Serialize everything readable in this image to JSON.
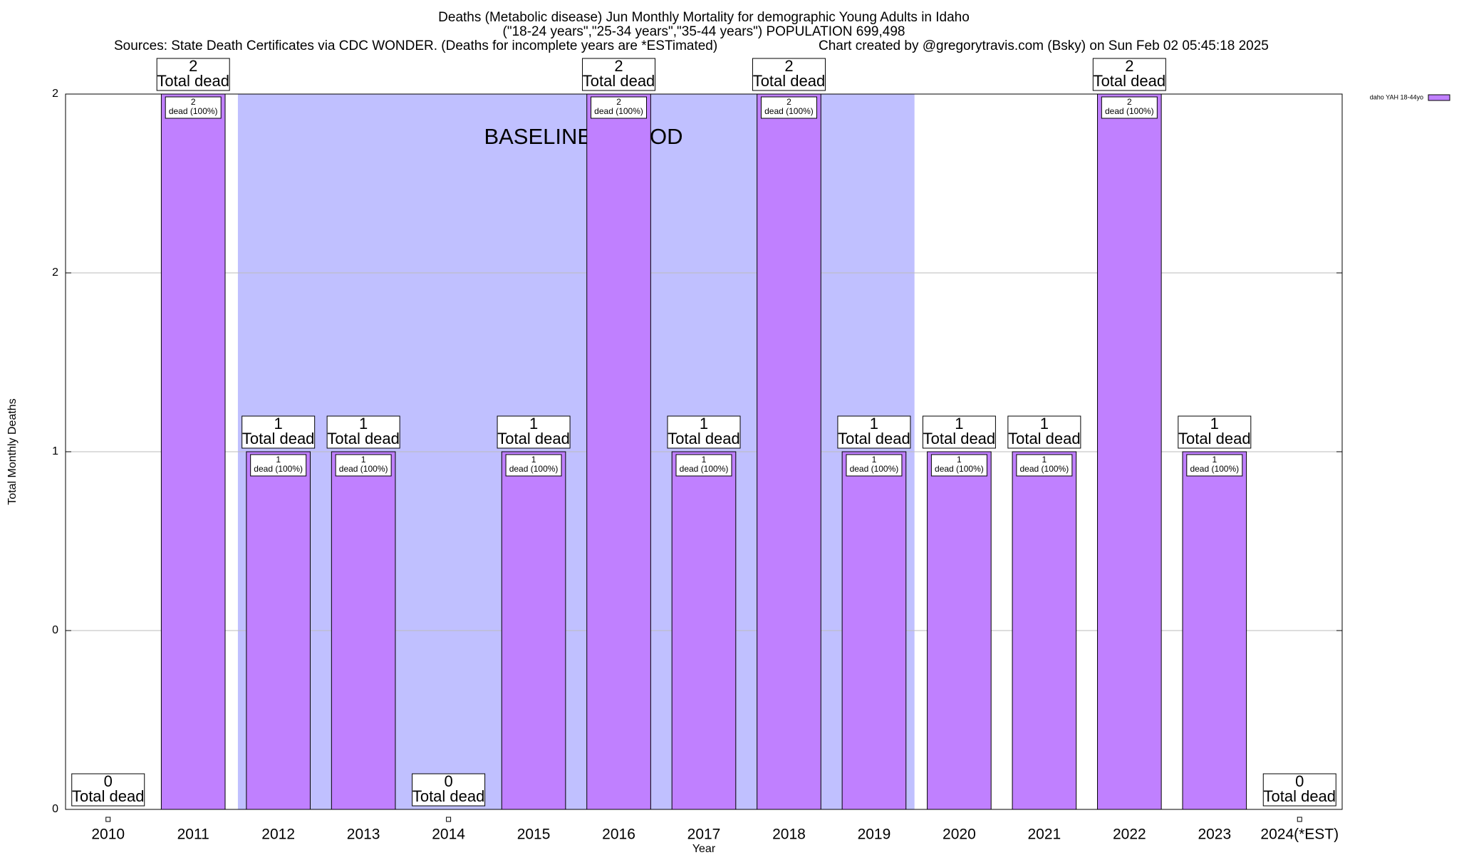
{
  "chart_data": {
    "type": "bar",
    "title": "Deaths (Metabolic disease) Jun Monthly Mortality for demographic Young Adults in Idaho",
    "subtitle": "(\"18-24 years\",\"25-34 years\",\"35-44 years\") POPULATION 699,498",
    "sources": "Sources: State Death Certificates via CDC WONDER. (Deaths for incomplete years are *ESTimated)",
    "credit": "Chart created by @gregorytravis.com (Bsky) on Sun Feb 02 05:45:18 2025",
    "x_label": "Year",
    "y_label": "Total Monthly Deaths",
    "categories": [
      "2010",
      "2011",
      "2012",
      "2013",
      "2014",
      "2015",
      "2016",
      "2017",
      "2018",
      "2019",
      "2020",
      "2021",
      "2022",
      "2023",
      "2024(*EST)"
    ],
    "series": [
      {
        "name": "daho YAH 18-44yo",
        "color": "#c080ff",
        "values": [
          0,
          2,
          1,
          1,
          0,
          1,
          2,
          1,
          2,
          1,
          1,
          1,
          2,
          1,
          0
        ]
      }
    ],
    "total_label": "Total dead",
    "inner_label": "dead (100%)",
    "baseline": {
      "label": "BASELINE PERIOD",
      "start": "2012",
      "end": "2019",
      "color": "#c0c0ff"
    },
    "ylim": [
      0,
      2
    ],
    "yticks": [
      0,
      {
        "value": 0.5,
        "label": "0"
      },
      1,
      {
        "value": 1.5,
        "label": "2"
      },
      2
    ],
    "grid": true,
    "legend": "top-right"
  }
}
